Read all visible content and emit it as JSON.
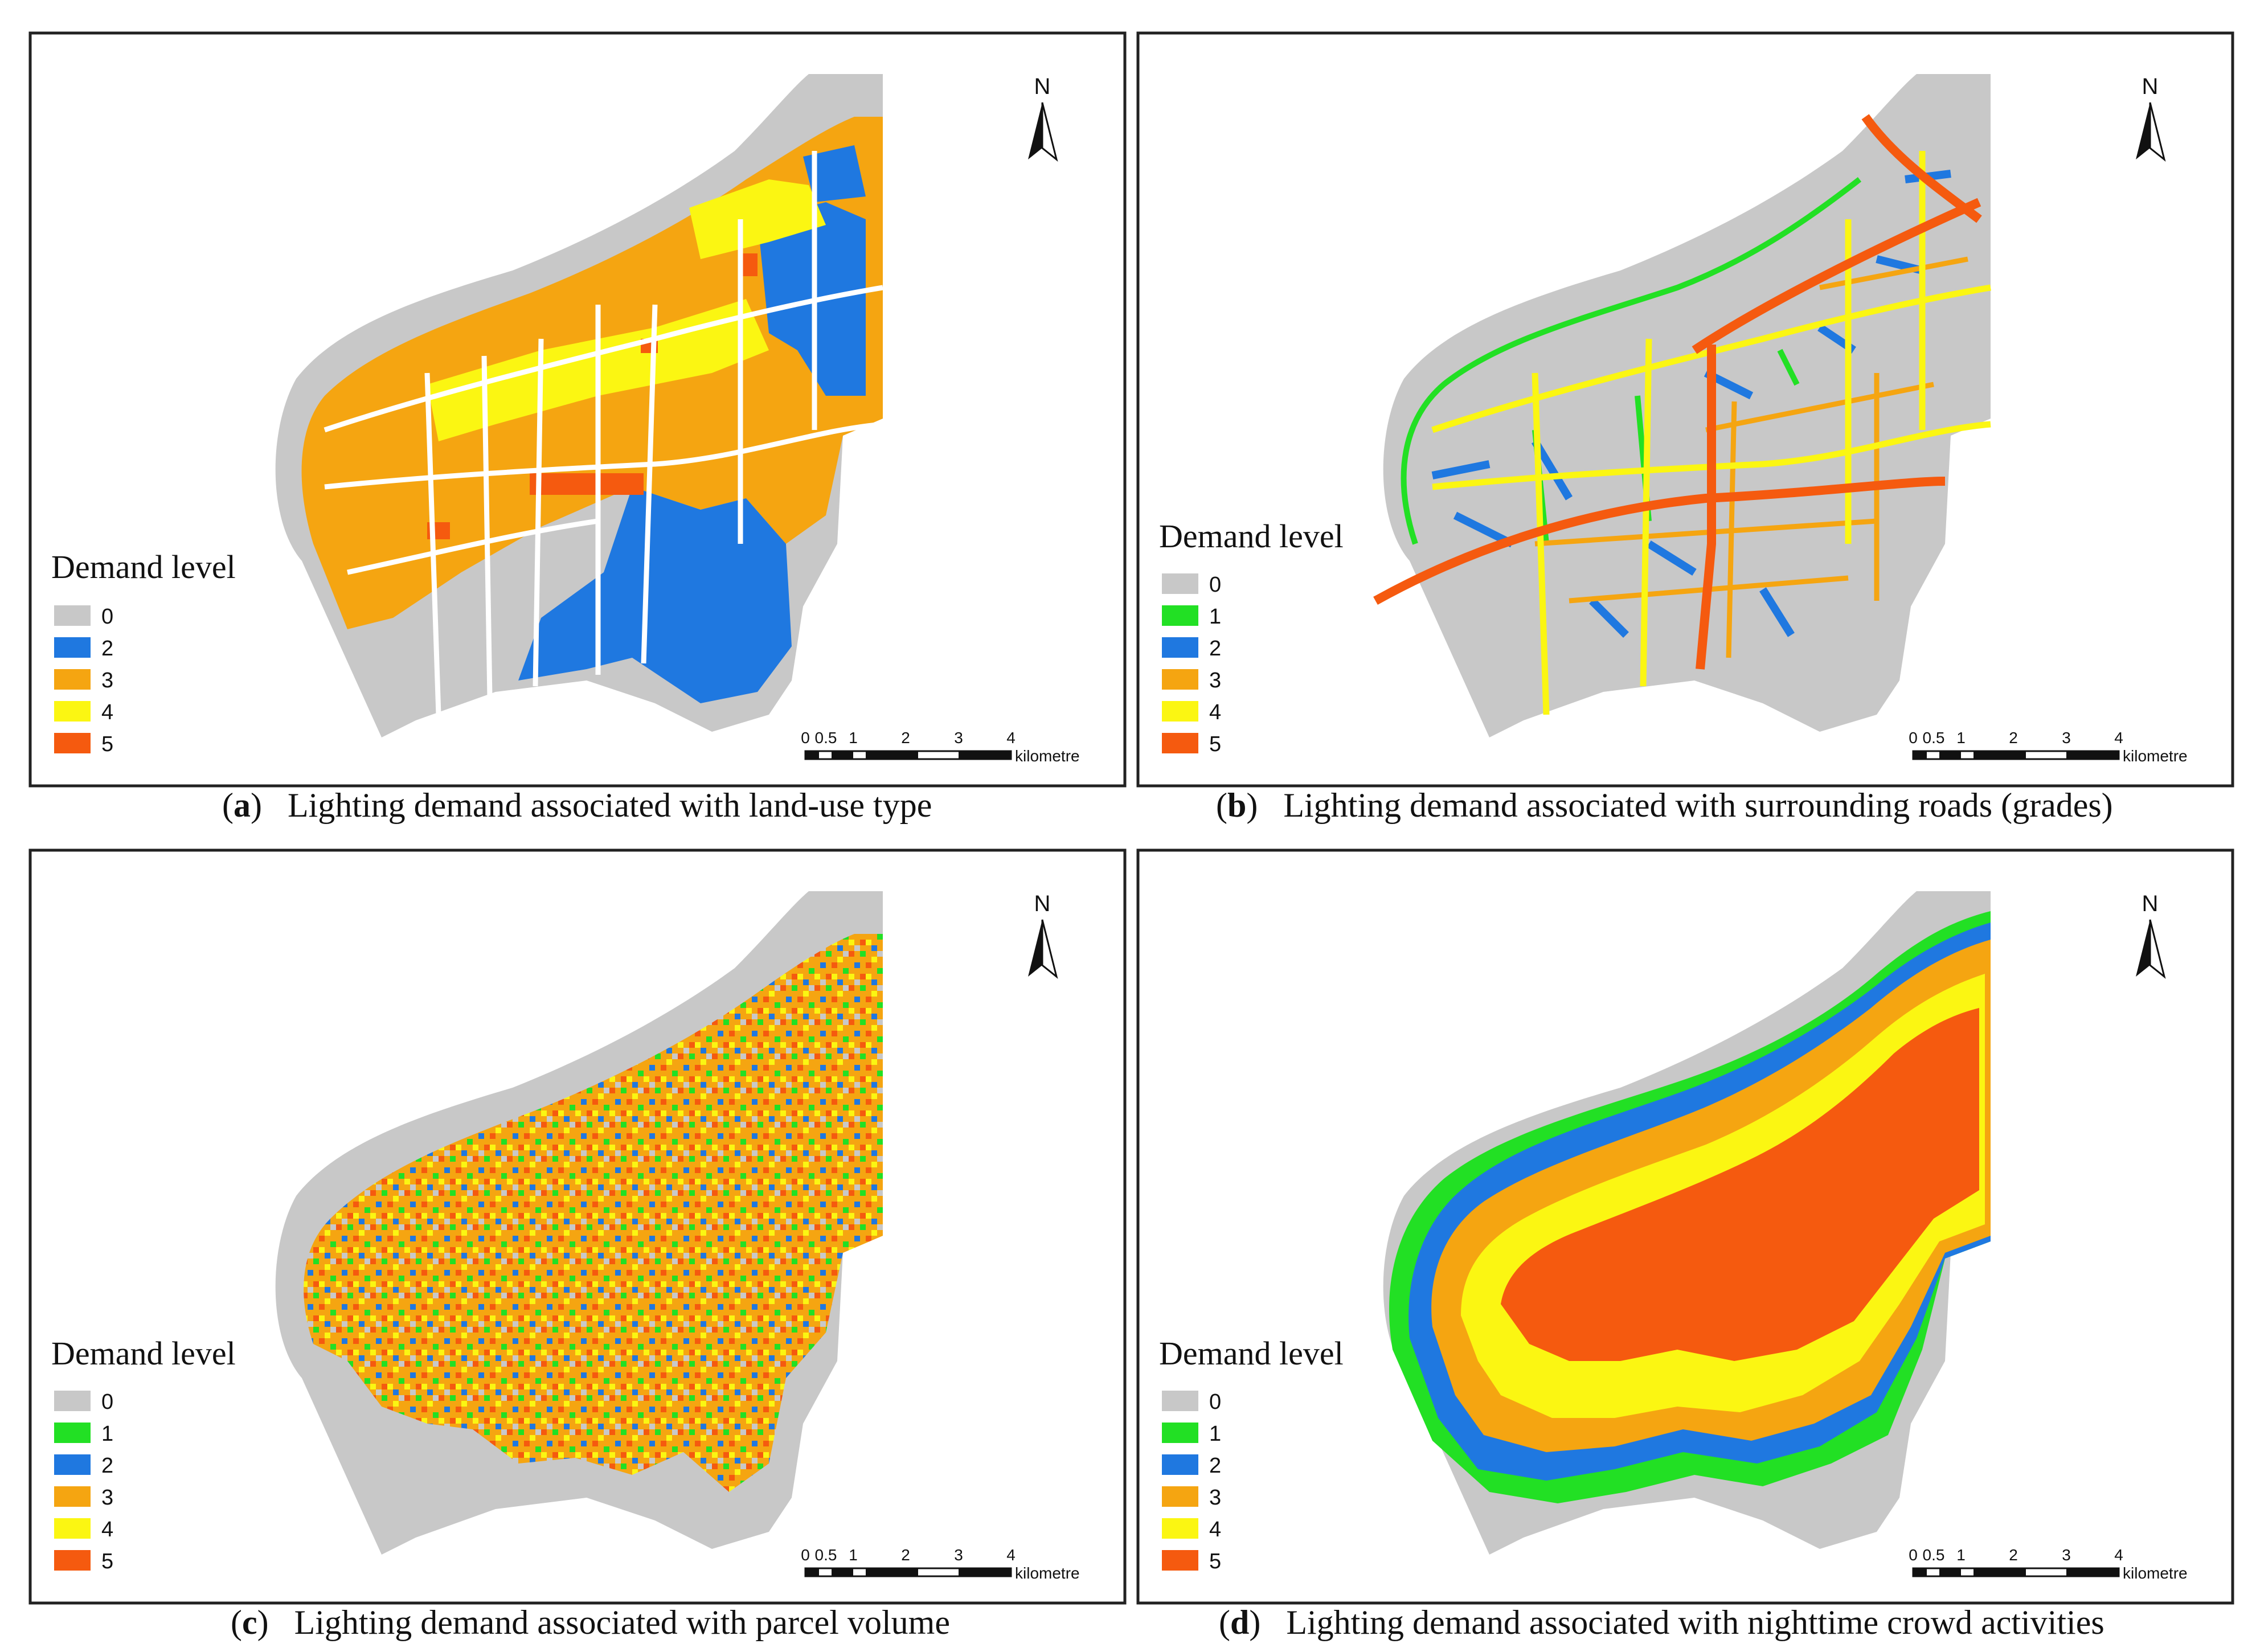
{
  "legend": {
    "title": "Demand level",
    "levels": [
      {
        "label": "0",
        "color": "#c8c8c8"
      },
      {
        "label": "1",
        "color": "#22e024"
      },
      {
        "label": "2",
        "color": "#1f78e0"
      },
      {
        "label": "3",
        "color": "#f5a511"
      },
      {
        "label": "4",
        "color": "#fbf612"
      },
      {
        "label": "5",
        "color": "#f55a0f"
      }
    ]
  },
  "north_label": "N",
  "scale": {
    "ticks": [
      "0",
      "0.5",
      "1",
      "2",
      "3",
      "4"
    ],
    "unit": "kilometre"
  },
  "panels": [
    {
      "letter": "a",
      "open": "(",
      "close": ")",
      "caption": "Lighting demand associated with land-use type",
      "levels_shown": [
        "0",
        "2",
        "3",
        "4",
        "5"
      ]
    },
    {
      "letter": "b",
      "open": "(",
      "close": ")",
      "caption": "Lighting demand associated with surrounding roads (grades)",
      "levels_shown": [
        "0",
        "1",
        "2",
        "3",
        "4",
        "5"
      ]
    },
    {
      "letter": "c",
      "open": "(",
      "close": ")",
      "caption": "Lighting demand associated with parcel volume",
      "levels_shown": [
        "0",
        "1",
        "2",
        "3",
        "4",
        "5"
      ]
    },
    {
      "letter": "d",
      "open": "(",
      "close": ")",
      "caption": "Lighting demand associated with nighttime crowd activities",
      "levels_shown": [
        "0",
        "1",
        "2",
        "3",
        "4",
        "5"
      ]
    }
  ]
}
